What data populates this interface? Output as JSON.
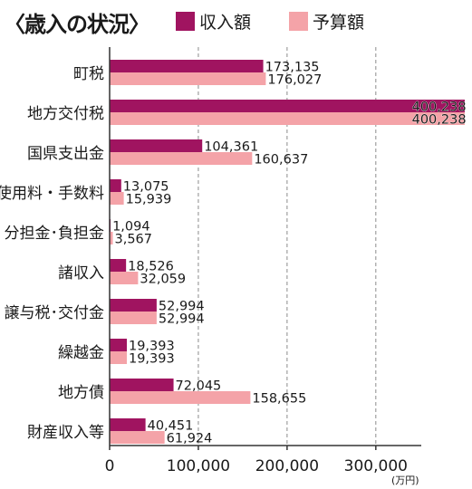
{
  "chart_data": {
    "type": "bar",
    "orientation": "horizontal",
    "title": "〈歳入の状況〉",
    "unit_label": "(万円)",
    "categories": [
      "町税",
      "地方交付税",
      "国県支出金",
      "使用料・手数料",
      "分担金･負担金",
      "諸収入",
      "譲与税･交付金",
      "繰越金",
      "地方債",
      "財産収入等"
    ],
    "series": [
      {
        "name": "収入額",
        "color": "#a01460",
        "values": [
          173135,
          400238,
          104361,
          13075,
          1094,
          18526,
          52994,
          19393,
          72045,
          40451
        ],
        "labels": [
          "173,135",
          "400,238",
          "104,361",
          "13,075",
          "1,094",
          "18,526",
          "52,994",
          "19,393",
          "72,045",
          "40,451"
        ]
      },
      {
        "name": "予算額",
        "color": "#f4a3a8",
        "values": [
          176027,
          400238,
          160637,
          15939,
          3567,
          32059,
          52994,
          19393,
          158655,
          61924
        ],
        "labels": [
          "176,027",
          "400,238",
          "160,637",
          "15,939",
          "3,567",
          "32,059",
          "52,994",
          "19,393",
          "158,655",
          "61,924"
        ]
      }
    ],
    "xlim": [
      0,
      400238
    ],
    "x_ticks": [
      0,
      100000,
      200000,
      300000
    ],
    "x_tick_labels": [
      "0",
      "100,000",
      "200,000",
      "300,000"
    ],
    "grid": "vertical-dashed",
    "legend": "top"
  }
}
